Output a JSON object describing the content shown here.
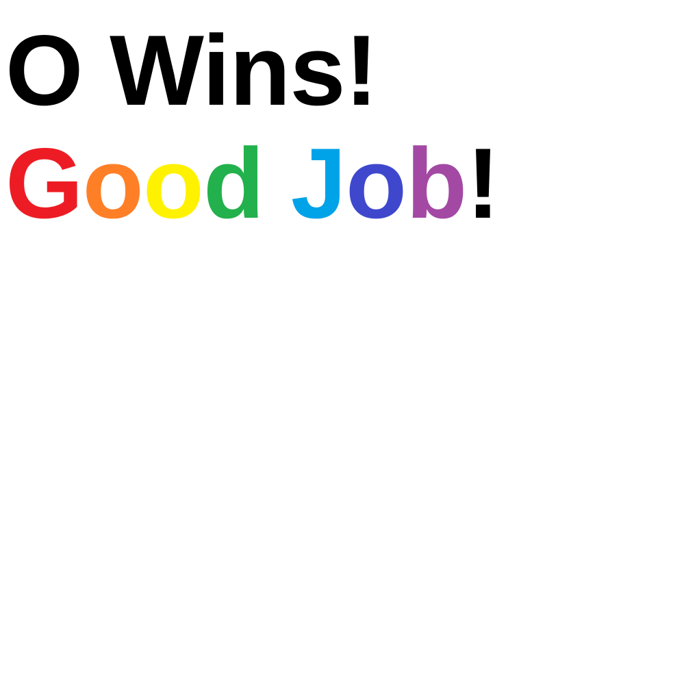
{
  "result": {
    "text": "O Wins!",
    "color": "#000000"
  },
  "praise": {
    "letters": [
      {
        "char": "G",
        "color": "#ed1c24"
      },
      {
        "char": "o",
        "color": "#ff7f27"
      },
      {
        "char": "o",
        "color": "#fff200"
      },
      {
        "char": "d",
        "color": "#22b14c"
      },
      {
        "char": " ",
        "color": "#000000"
      },
      {
        "char": "J",
        "color": "#00a2e8"
      },
      {
        "char": "o",
        "color": "#3f48cc"
      },
      {
        "char": "b",
        "color": "#a349a4"
      },
      {
        "char": "!",
        "color": "#000000"
      }
    ]
  }
}
